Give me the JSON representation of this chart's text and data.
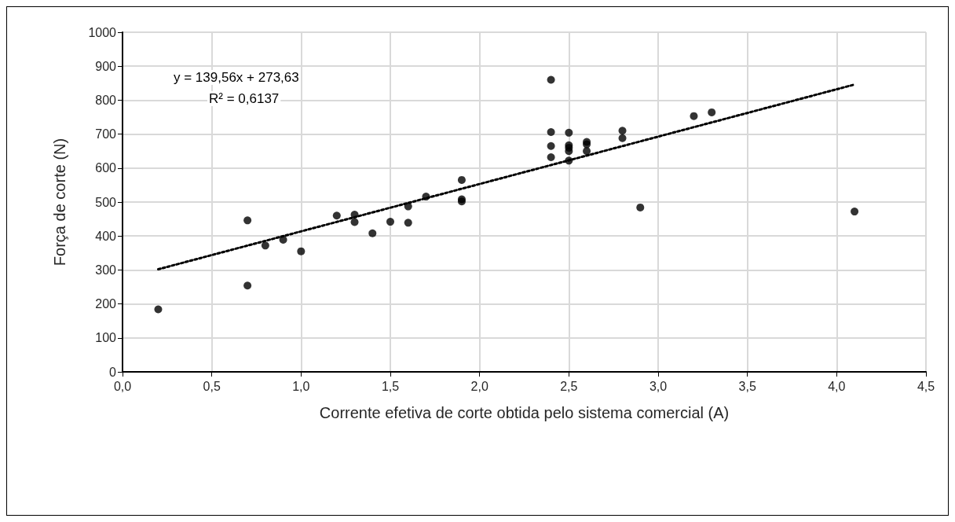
{
  "chart_data": {
    "type": "scatter",
    "xlabel": "Corrente efetiva de corte obtida pelo sistema comercial (A)",
    "ylabel": "Força de corte (N)",
    "annotations": [
      "y = 139,56x + 273,63",
      "R² = 0,6137"
    ],
    "xlim": [
      0,
      4.5
    ],
    "xticks": [
      {
        "value": 0,
        "label": "0,0"
      },
      {
        "value": 0.5,
        "label": "0,5"
      },
      {
        "value": 1,
        "label": "1,0"
      },
      {
        "value": 1.5,
        "label": "1,5"
      },
      {
        "value": 2,
        "label": "2,0"
      },
      {
        "value": 2.5,
        "label": "2,5"
      },
      {
        "value": 3,
        "label": "3,0"
      },
      {
        "value": 3.5,
        "label": "3,5"
      },
      {
        "value": 4,
        "label": "4,0"
      },
      {
        "value": 4.5,
        "label": "4,5"
      }
    ],
    "ylim": [
      0,
      1000
    ],
    "yticks": [
      0,
      100,
      200,
      300,
      400,
      500,
      600,
      700,
      800,
      900,
      1000
    ],
    "grid": true,
    "marker": "circle",
    "series": [
      {
        "color": "#000000",
        "x": [
          0.2,
          0.7,
          0.7,
          0.8,
          0.9,
          1.0,
          1.2,
          1.3,
          1.3,
          1.4,
          1.5,
          1.6,
          1.6,
          1.7,
          1.9,
          1.9,
          1.9,
          2.4,
          2.4,
          2.4,
          2.4,
          2.5,
          2.5,
          2.5,
          2.5,
          2.5,
          2.6,
          2.6,
          2.6,
          2.8,
          2.8,
          2.9,
          3.2,
          3.3,
          4.1
        ],
        "values": [
          184,
          446,
          254,
          372,
          389,
          355,
          460,
          463,
          441,
          408,
          442,
          487,
          439,
          516,
          565,
          508,
          502,
          860,
          706,
          665,
          632,
          704,
          667,
          660,
          650,
          622,
          677,
          670,
          650,
          710,
          688,
          484,
          753,
          764,
          472
        ]
      },
      {
        "type": "line",
        "color": "#000000",
        "marker": "none",
        "line_style": "dotted",
        "x": [
          0.2,
          4.1
        ],
        "values": [
          302,
          846
        ]
      }
    ]
  }
}
